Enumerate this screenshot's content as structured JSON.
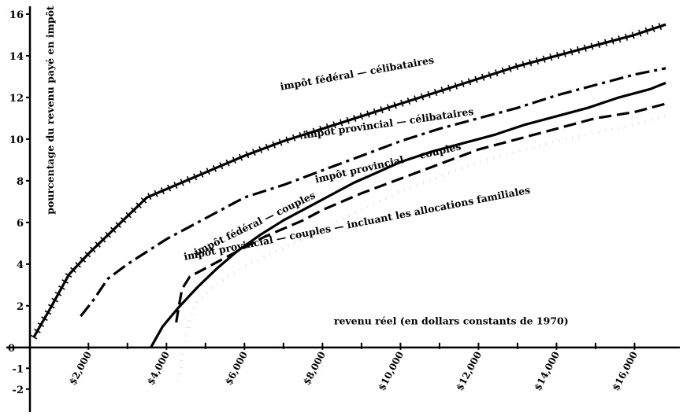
{
  "chart_data": {
    "type": "line",
    "ylabel": "pourcentage du revenu payé en impôt",
    "xlabel": "revenu réel (en dollars constants de 1970)",
    "xlim": [
      500,
      17000
    ],
    "ylim": [
      -2.8,
      16.3
    ],
    "y_ticks": [
      -2,
      -1,
      2,
      4,
      6,
      8,
      10,
      12,
      14,
      16
    ],
    "y_tick_labels": [
      "-2",
      "-1",
      "2",
      "4",
      "6",
      "8",
      "10",
      "12",
      "14",
      "16"
    ],
    "y_zero_label": "0",
    "x_ticks": [
      2000,
      4000,
      6000,
      8000,
      10000,
      12000,
      14000,
      16000
    ],
    "x_tick_labels": [
      "$2,000",
      "$4,000",
      "$6,000",
      "$8,000",
      "$10,000",
      "$12,000",
      "$14,000",
      "$16,000"
    ],
    "x_minor_ticks": [
      3000,
      5000,
      7000,
      9000,
      11000,
      13000,
      15000
    ],
    "grid": false,
    "series": [
      {
        "name": "impôt fédéral — célibataires",
        "style": "hatched",
        "x": [
          600,
          1000,
          1500,
          2000,
          2500,
          3000,
          3500,
          4000,
          4500,
          5000,
          6000,
          7000,
          8000,
          9000,
          10000,
          11000,
          12000,
          13000,
          14000,
          15000,
          16000,
          16800
        ],
        "y": [
          0.5,
          1.8,
          3.5,
          4.5,
          5.4,
          6.3,
          7.2,
          7.6,
          8.0,
          8.4,
          9.2,
          9.9,
          10.5,
          11.1,
          11.7,
          12.3,
          12.9,
          13.5,
          14.0,
          14.5,
          15.0,
          15.5
        ]
      },
      {
        "name": "impôt provincial — célibataires",
        "style": "dash-dot",
        "x": [
          1800,
          2100,
          2500,
          3000,
          3500,
          4000,
          5000,
          6000,
          7000,
          8000,
          9000,
          10000,
          11000,
          12000,
          13000,
          14000,
          15000,
          16000,
          16800
        ],
        "y": [
          1.5,
          2.2,
          3.3,
          4.0,
          4.6,
          5.2,
          6.2,
          7.2,
          7.8,
          8.5,
          9.2,
          9.9,
          10.5,
          11.0,
          11.5,
          12.1,
          12.6,
          13.1,
          13.4
        ]
      },
      {
        "name": "impôt fédéral — couples",
        "style": "solid",
        "x": [
          3600,
          3900,
          4300,
          4800,
          5300,
          5800,
          6400,
          7000,
          7600,
          8200,
          8800,
          9400,
          10000,
          10800,
          11600,
          12400,
          13200,
          14000,
          14800,
          15600,
          16400,
          16800
        ],
        "y": [
          0.0,
          1.0,
          1.9,
          2.9,
          3.8,
          4.6,
          5.4,
          6.1,
          6.7,
          7.3,
          7.9,
          8.4,
          8.9,
          9.4,
          9.8,
          10.2,
          10.7,
          11.1,
          11.5,
          12.0,
          12.4,
          12.7
        ]
      },
      {
        "name": "impôt provincial — couples",
        "style": "dashed",
        "x": [
          4250,
          4300,
          4400,
          4600,
          5000,
          5500,
          6000,
          6500,
          7000,
          7500,
          8000,
          9000,
          10000,
          11000,
          12000,
          13000,
          14000,
          15000,
          16000,
          16800
        ],
        "y": [
          1.2,
          1.8,
          2.8,
          3.4,
          3.8,
          4.3,
          4.8,
          5.3,
          5.7,
          6.1,
          6.6,
          7.4,
          8.1,
          8.8,
          9.5,
          10.0,
          10.5,
          11.0,
          11.3,
          11.7
        ]
      },
      {
        "name": "impôt provincial — couples — incluant les allocations familiales",
        "style": "dotted",
        "x": [
          4300,
          4400,
          4500,
          4600,
          4800,
          5200,
          5600,
          6000,
          6500,
          7000,
          7500,
          8000,
          9000,
          10000,
          11000,
          12000,
          13000,
          14000,
          15000,
          16000,
          16800
        ],
        "y": [
          -1.6,
          -0.5,
          0.4,
          1.4,
          2.2,
          2.9,
          3.4,
          3.9,
          4.3,
          4.8,
          5.2,
          5.7,
          6.6,
          7.5,
          8.2,
          8.9,
          9.4,
          9.9,
          10.3,
          10.7,
          11.1
        ]
      }
    ],
    "annotations": [
      {
        "text": "impôt fédéral — célibataires",
        "x": 8900,
        "y": 13.0,
        "angle": -10
      },
      {
        "text": "impôt provincial — célibataires",
        "x": 9700,
        "y": 10.6,
        "angle": -8
      },
      {
        "text": "impôt provincial — couples",
        "x": 9700,
        "y": 8.7,
        "angle": -13
      },
      {
        "text": "impôt fédéral — couples",
        "x": 6300,
        "y": 5.8,
        "angle": -26
      },
      {
        "text": "impôt provincial — couples — incluant les allocations familiales",
        "x": 8900,
        "y": 5.8,
        "angle": -11
      }
    ],
    "colors": {
      "ink": "#000000",
      "background": "#ffffff"
    }
  }
}
